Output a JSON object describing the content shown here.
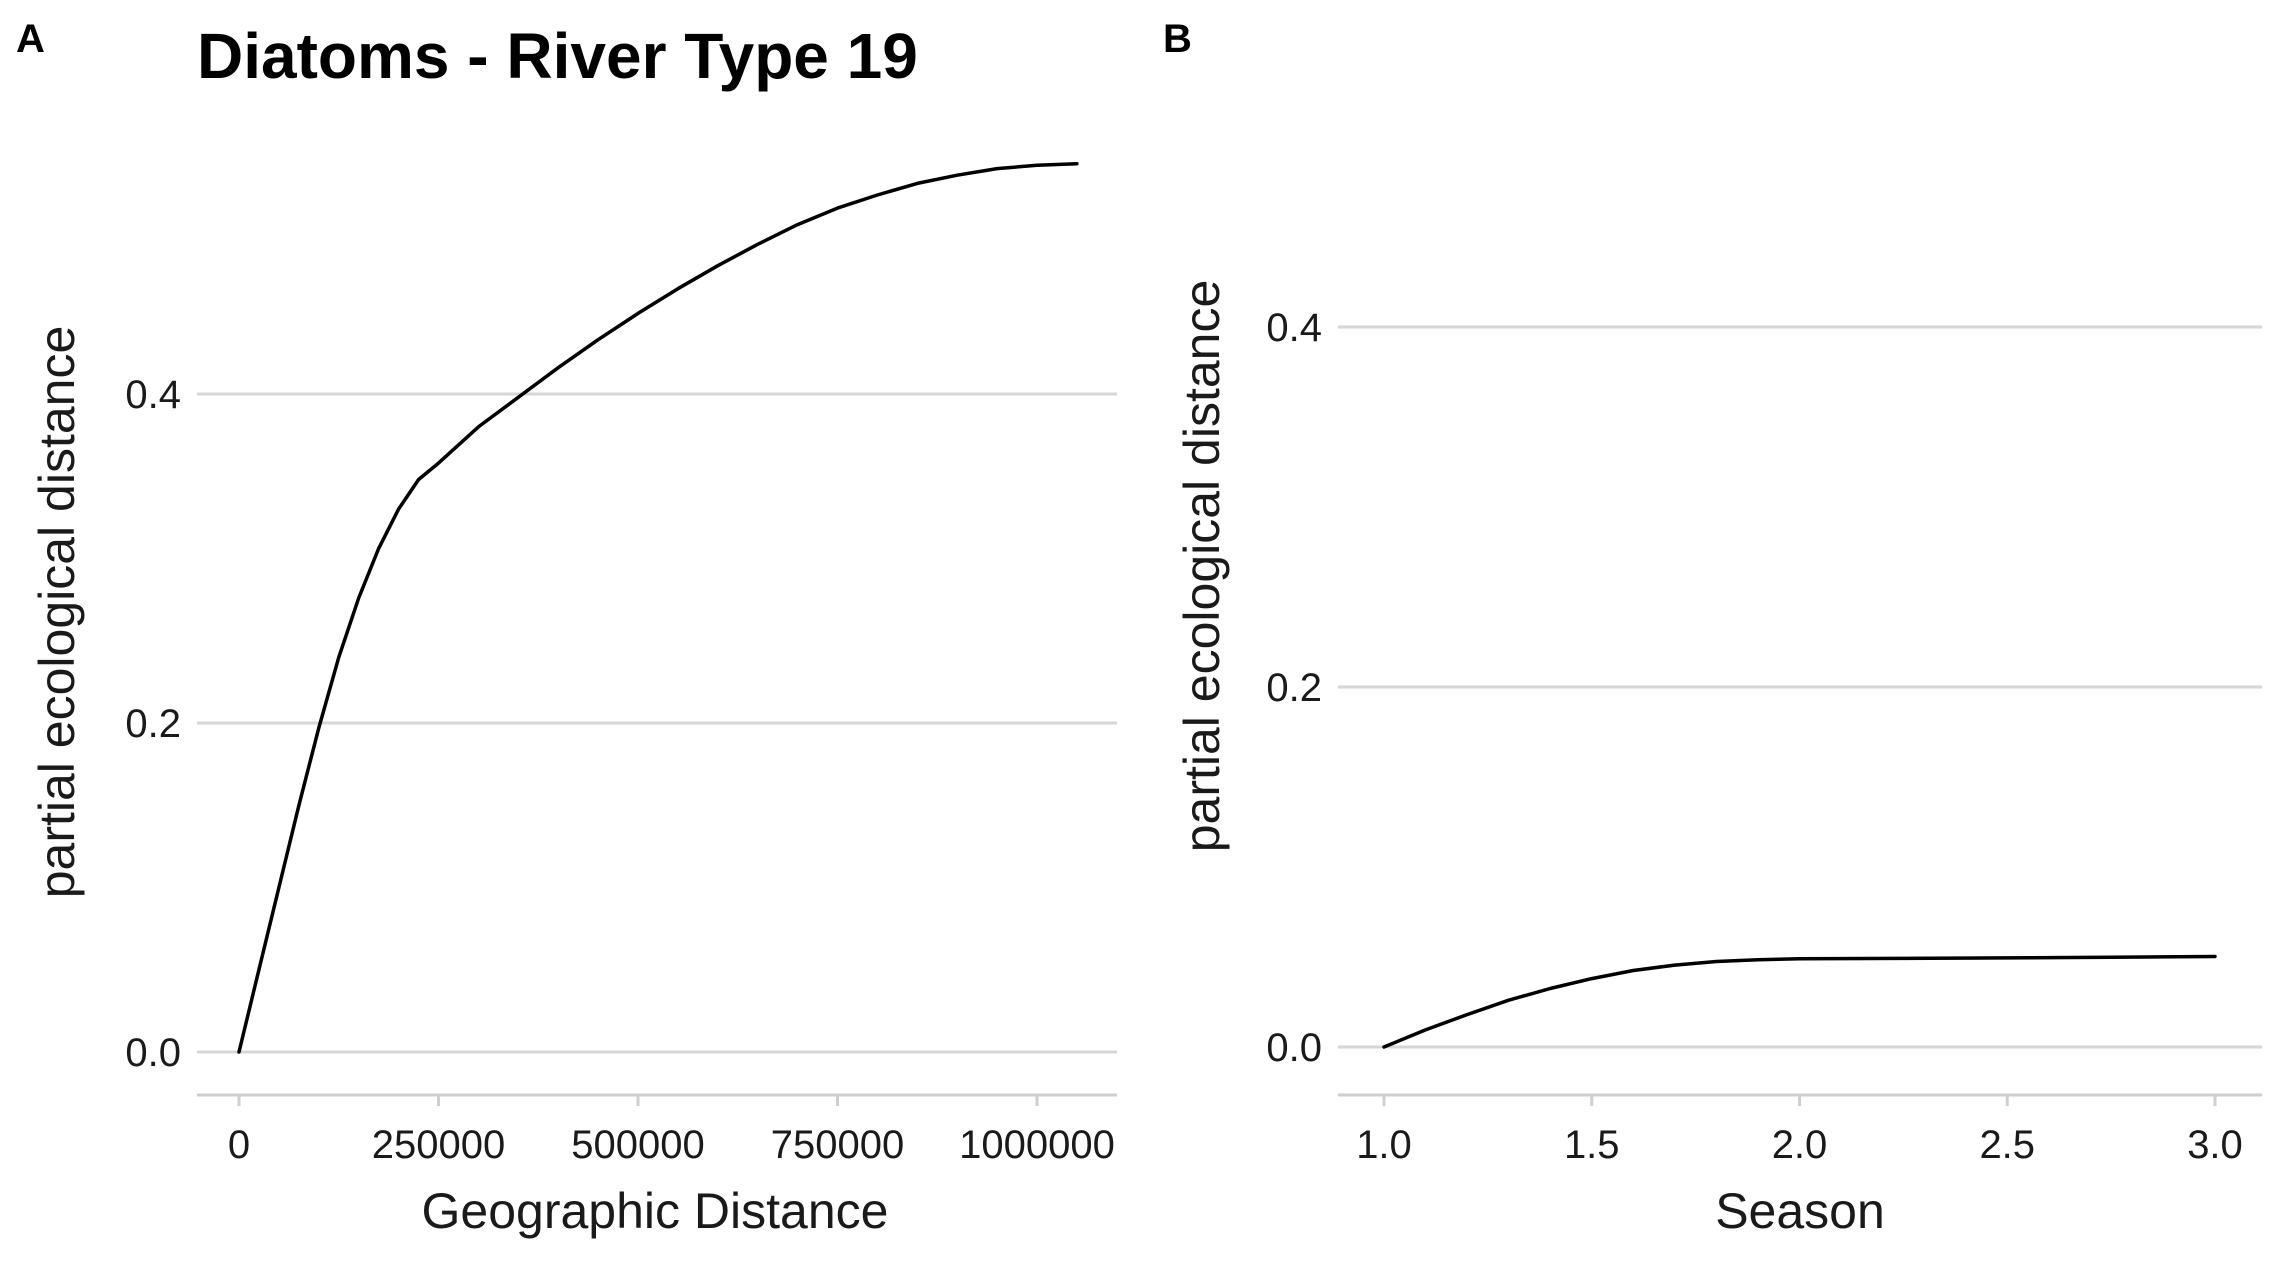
{
  "figure": {
    "title": "Diatoms - River Type 19",
    "panels": [
      "A",
      "B"
    ]
  },
  "chart_data": [
    {
      "type": "line",
      "panel": "A",
      "title": "Diatoms - River Type 19",
      "xlabel": "Geographic Distance",
      "ylabel": "partial ecological distance",
      "xlim": [
        -55000,
        1100000
      ],
      "ylim": [
        -0.028,
        0.0
      ],
      "ylim_full": [
        -0.028,
        0.575
      ],
      "x_ticks": [
        0,
        250000,
        500000,
        750000,
        1000000
      ],
      "x_tick_labels": [
        "0",
        "250000",
        "500000",
        "750000",
        "1000000"
      ],
      "y_ticks": [
        0.0,
        0.2,
        0.4
      ],
      "y_tick_labels": [
        "0.0",
        "0.2",
        "0.4"
      ],
      "grid": "horizontal",
      "series": [
        {
          "color": "#000000",
          "x": [
            0,
            25000,
            50000,
            75000,
            100000,
            125000,
            150000,
            175000,
            200000,
            225000,
            250000,
            300000,
            350000,
            400000,
            450000,
            500000,
            550000,
            600000,
            650000,
            700000,
            750000,
            800000,
            850000,
            900000,
            950000,
            1000000,
            1050000
          ],
          "y": [
            0.0,
            0.05,
            0.1,
            0.15,
            0.197,
            0.24,
            0.276,
            0.306,
            0.33,
            0.348,
            0.358,
            0.38,
            0.398,
            0.416,
            0.433,
            0.449,
            0.464,
            0.478,
            0.491,
            0.503,
            0.513,
            0.521,
            0.528,
            0.533,
            0.537,
            0.539,
            0.54
          ]
        }
      ]
    },
    {
      "type": "line",
      "panel": "B",
      "xlabel": "Season",
      "ylabel": "partial ecological distance",
      "xlim": [
        0.9,
        3.1
      ],
      "ylim_full": [
        -0.02,
        0.51
      ],
      "x_ticks": [
        1.0,
        1.5,
        2.0,
        2.5,
        3.0
      ],
      "x_tick_labels": [
        "1.0",
        "1.5",
        "2.0",
        "2.5",
        "3.0"
      ],
      "y_ticks": [
        0.0,
        0.2,
        0.4
      ],
      "y_tick_labels": [
        "0.0",
        "0.2",
        "0.4"
      ],
      "grid": "horizontal",
      "series": [
        {
          "color": "#000000",
          "x": [
            1.0,
            1.1,
            1.2,
            1.3,
            1.4,
            1.5,
            1.6,
            1.7,
            1.8,
            1.9,
            2.0,
            2.25,
            2.5,
            2.75,
            3.0
          ],
          "y": [
            0.0,
            0.0095,
            0.018,
            0.026,
            0.0325,
            0.038,
            0.0425,
            0.0455,
            0.0475,
            0.0485,
            0.049,
            0.0492,
            0.0495,
            0.0499,
            0.0503
          ]
        }
      ]
    }
  ]
}
